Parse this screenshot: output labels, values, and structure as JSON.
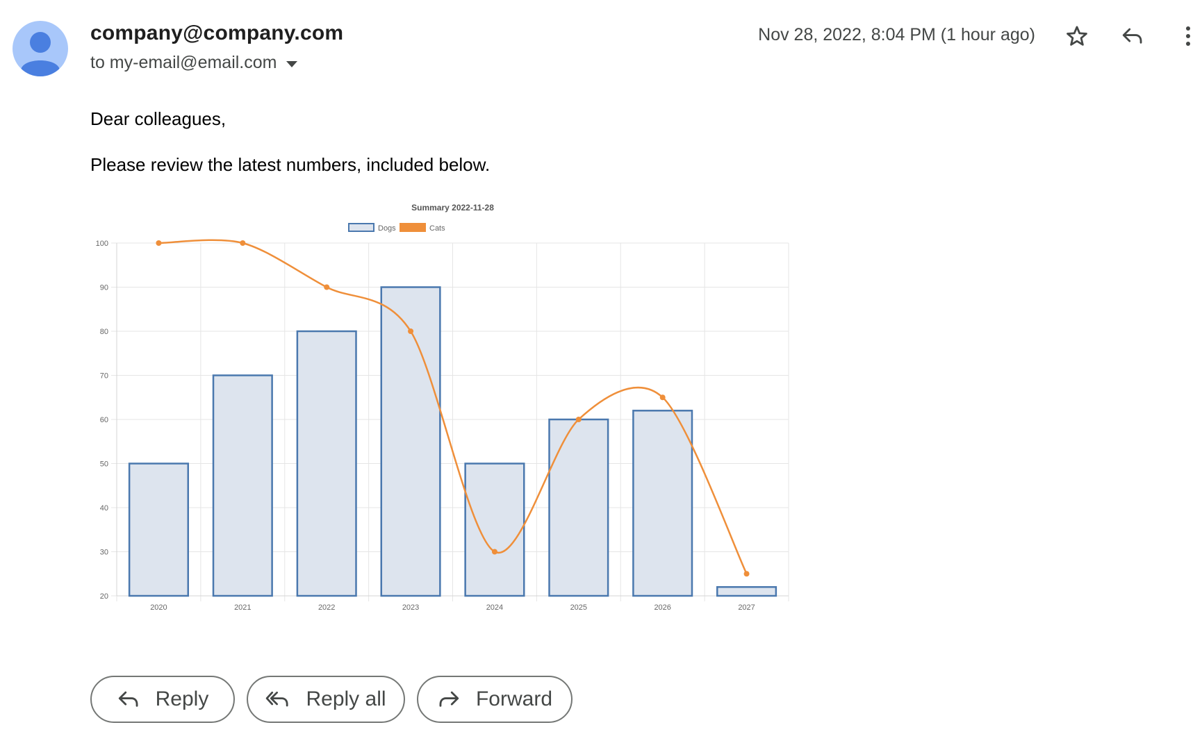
{
  "email": {
    "sender": "company@company.com",
    "recipient": "to my-email@email.com",
    "timestamp": "Nov 28, 2022, 8:04 PM (1 hour ago)",
    "greeting": "Dear colleagues,",
    "intro": "Please review the latest numbers, included below."
  },
  "icons": {
    "avatar": "person-avatar-icon",
    "star": "star-icon",
    "reply": "reply-icon",
    "more": "more-vertical-icon",
    "recipient_toggle": "caret-down-icon"
  },
  "actions": {
    "reply_label": "Reply",
    "reply_all_label": "Reply all",
    "forward_label": "Forward"
  },
  "colors": {
    "avatar_bg": "#a8c7fa",
    "avatar_fg": "#4a7fe0",
    "dogs_fill": "#dde4ee",
    "dogs_border": "#4a78ae",
    "cats_line": "#ef8f3a"
  },
  "chart_data": {
    "type": "bar",
    "title": "Summary 2022-11-28",
    "categories": [
      "2020",
      "2021",
      "2022",
      "2023",
      "2024",
      "2025",
      "2026",
      "2027"
    ],
    "series": [
      {
        "name": "Dogs",
        "type": "bar",
        "values": [
          50,
          70,
          80,
          90,
          50,
          60,
          62,
          22
        ]
      },
      {
        "name": "Cats",
        "type": "line",
        "smooth": true,
        "values": [
          100,
          100,
          90,
          80,
          30,
          60,
          65,
          25
        ]
      }
    ],
    "ylim": [
      20,
      100
    ],
    "yticks": [
      20,
      30,
      40,
      50,
      60,
      70,
      80,
      90,
      100
    ],
    "grid": true,
    "legend": "top-center",
    "xlabel": "",
    "ylabel": ""
  }
}
